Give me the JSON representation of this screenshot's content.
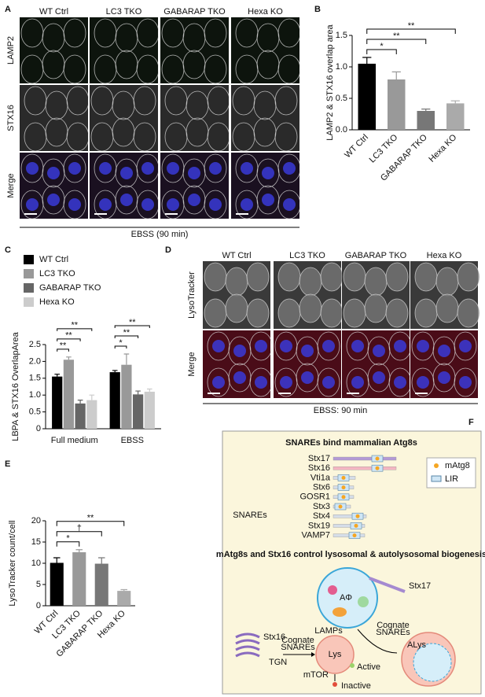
{
  "panel_labels": [
    "A",
    "B",
    "C",
    "D",
    "E",
    "F"
  ],
  "figure_A": {
    "columns": [
      "WT Ctrl",
      "LC3 TKO",
      "GABARAP TKO",
      "Hexa KO"
    ],
    "rows": [
      "LAMP2",
      "STX16",
      "Merge"
    ],
    "caption": "EBSS (90 min)"
  },
  "chart_data": [
    {
      "type": "bar",
      "ylabel": "LAMP2 & STX16 overlap area",
      "categories": [
        "WT Ctrl",
        "LC3 TKO",
        "GABARAP TKO",
        "Hexa KO"
      ],
      "values": [
        1.05,
        0.8,
        0.3,
        0.42
      ],
      "errors": [
        0.1,
        0.12,
        0.03,
        0.04
      ],
      "colors": [
        "#000000",
        "#999999",
        "#777777",
        "#aaaaaa"
      ],
      "ylim": [
        0,
        1.5
      ],
      "yticks": [
        {
          "value": 0,
          "label": "0.0"
        },
        0.5,
        {
          "value": 1,
          "label": "1.0"
        },
        1.5
      ],
      "significance": [
        "*",
        "**",
        "**"
      ]
    },
    {
      "type": "bar",
      "ylabel": "LBPA & STX16 OverlapArea",
      "categories": [
        "Full medium",
        "EBSS"
      ],
      "series": [
        {
          "name": "WT Ctrl",
          "color": "#000000",
          "values": [
            1.55,
            1.68
          ],
          "errors": [
            0.07,
            0.05
          ]
        },
        {
          "name": "LC3 TKO",
          "color": "#999999",
          "values": [
            2.05,
            1.9
          ],
          "errors": [
            0.08,
            0.32
          ]
        },
        {
          "name": "GABARAP TKO",
          "color": "#666666",
          "values": [
            0.75,
            1.02
          ],
          "errors": [
            0.1,
            0.1
          ]
        },
        {
          "name": "Hexa KO",
          "color": "#cccccc",
          "values": [
            0.85,
            1.1
          ],
          "errors": [
            0.15,
            0.08
          ]
        }
      ],
      "ylim": [
        0,
        2.5
      ],
      "yticks": [
        0,
        0.5,
        {
          "value": 1,
          "label": "1.0"
        },
        1.5,
        {
          "value": 2,
          "label": "2.0"
        },
        2.5
      ],
      "significance": [
        [
          "**",
          "**",
          "**"
        ],
        [
          "*",
          "**",
          "**"
        ]
      ]
    },
    {
      "type": "bar",
      "ylabel": "LysoTracker count/cell",
      "categories": [
        "WT Ctrl",
        "LC3 TKO",
        "GABARAP TKO",
        "Hexa KO"
      ],
      "values": [
        10.1,
        12.6,
        9.9,
        3.5
      ],
      "errors": [
        1.2,
        0.6,
        1.4,
        0.3
      ],
      "colors": [
        "#000000",
        "#999999",
        "#777777",
        "#aaaaaa"
      ],
      "ylim": [
        0,
        20
      ],
      "yticks": [
        0,
        5,
        10,
        15,
        20
      ],
      "significance": [
        "*",
        "†",
        "**"
      ]
    }
  ],
  "figure_D": {
    "columns": [
      "WT Ctrl",
      "LC3 TKO",
      "GABARAP TKO",
      "Hexa KO"
    ],
    "rows": [
      "LysoTracker",
      "Merge"
    ],
    "caption": "EBSS: 90 min"
  },
  "diagram_F": {
    "title": "SNAREs bind mammalian Atg8s",
    "group_label": "SNAREs",
    "snares": [
      "Stx17",
      "Stx16",
      "Vti1a",
      "Stx6",
      "GOSR1",
      "Stx3",
      "Stx4",
      "Stx19",
      "VAMP7"
    ],
    "legend": [
      "mAtg8",
      "LIR"
    ],
    "subtitle": "mAtg8s and Stx16  control lysosomal  & autolysosomal biogenesis",
    "labels": {
      "autophagosome": "AΦ",
      "stx17": "Stx17",
      "stx16": "Stx16",
      "tgn": "TGN",
      "cognate_left": [
        "Cognate",
        "SNAREs"
      ],
      "lamps": "LAMPs",
      "lys": "Lys",
      "active": "Active",
      "mtor": "mTOR",
      "inactive": "Inactive",
      "cognate_right": [
        "Cognate",
        "SNAREs"
      ],
      "alys": "ALys"
    }
  }
}
